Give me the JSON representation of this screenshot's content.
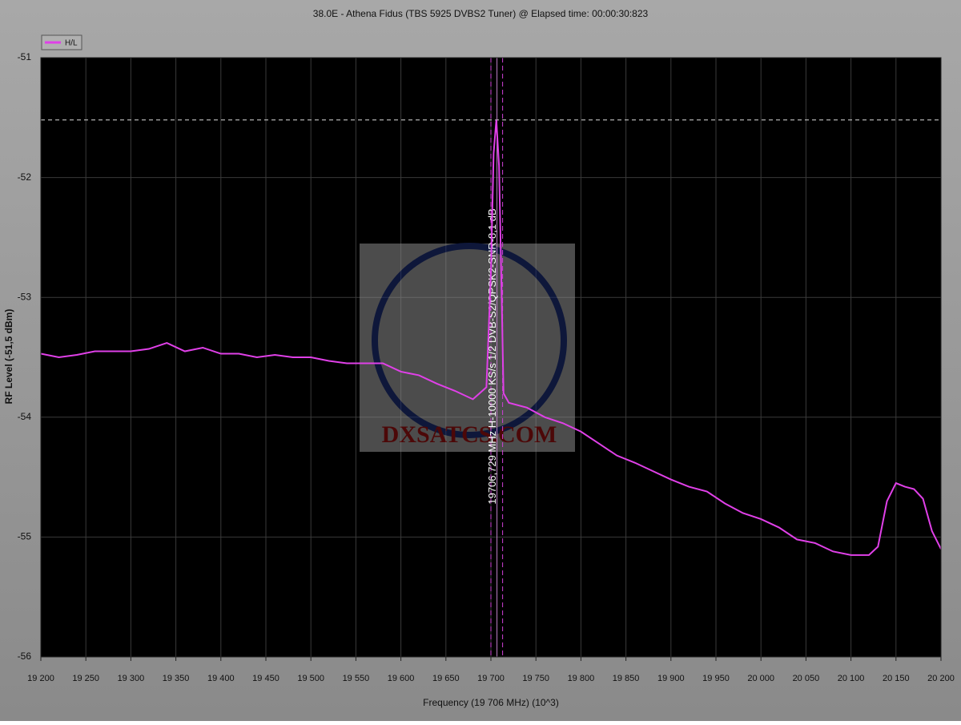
{
  "chart_data": {
    "type": "line",
    "title": "38.0E - Athena Fidus (TBS 5925 DVBS2 Tuner) @ Elapsed time: 00:00:30:823",
    "x_label": "Frequency  (19 706 MHz) (10^3)",
    "y_label": "RF Level (-51,5 dBm)",
    "annotation": "19706,729 MHz  H-10000 KS/s 1/2 DVB-S2/QPSK2-SNR-8,1 dB",
    "watermark": "DXSATCS.COM",
    "grid": true,
    "legend": "top-left",
    "xlim": [
      19200,
      20200
    ],
    "ylim": [
      -56,
      -51
    ],
    "yticks": [
      -56,
      -55,
      -54,
      -53,
      -52,
      -51
    ],
    "xticks": [
      {
        "value": 19200,
        "label": "19 200"
      },
      {
        "value": 19250,
        "label": "19 250"
      },
      {
        "value": 19300,
        "label": "19 300"
      },
      {
        "value": 19350,
        "label": "19 350"
      },
      {
        "value": 19400,
        "label": "19 400"
      },
      {
        "value": 19450,
        "label": "19 450"
      },
      {
        "value": 19500,
        "label": "19 500"
      },
      {
        "value": 19550,
        "label": "19 550"
      },
      {
        "value": 19600,
        "label": "19 600"
      },
      {
        "value": 19650,
        "label": "19 650"
      },
      {
        "value": 19700,
        "label": "19 700"
      },
      {
        "value": 19750,
        "label": "19 750"
      },
      {
        "value": 19800,
        "label": "19 800"
      },
      {
        "value": 19850,
        "label": "19 850"
      },
      {
        "value": 19900,
        "label": "19 900"
      },
      {
        "value": 19950,
        "label": "19 950"
      },
      {
        "value": 20000,
        "label": "20 000"
      },
      {
        "value": 20050,
        "label": "20 050"
      },
      {
        "value": 20100,
        "label": "20 100"
      },
      {
        "value": 20150,
        "label": "20 150"
      },
      {
        "value": 20200,
        "label": "20 200"
      }
    ],
    "markers": [
      19700,
      19706.729,
      19713
    ],
    "peak_level": -51.52,
    "x": [
      19200,
      19220,
      19240,
      19260,
      19280,
      19300,
      19320,
      19340,
      19360,
      19380,
      19400,
      19420,
      19440,
      19460,
      19480,
      19500,
      19520,
      19540,
      19560,
      19580,
      19600,
      19620,
      19640,
      19660,
      19680,
      19695,
      19700,
      19703,
      19706,
      19709,
      19712,
      19714,
      19720,
      19740,
      19760,
      19780,
      19800,
      19820,
      19840,
      19860,
      19880,
      19900,
      19920,
      19940,
      19960,
      19980,
      20000,
      20020,
      20040,
      20060,
      20080,
      20100,
      20120,
      20130,
      20140,
      20150,
      20160,
      20170,
      20180,
      20190,
      20200
    ],
    "series": [
      {
        "name": "H/L",
        "color": "#e040e8",
        "values": [
          -53.47,
          -53.5,
          -53.48,
          -53.45,
          -53.45,
          -53.45,
          -53.43,
          -53.38,
          -53.45,
          -53.42,
          -53.47,
          -53.47,
          -53.5,
          -53.48,
          -53.5,
          -53.5,
          -53.53,
          -53.55,
          -53.55,
          -53.55,
          -53.62,
          -53.65,
          -53.72,
          -53.78,
          -53.85,
          -53.75,
          -52.8,
          -51.8,
          -51.52,
          -51.9,
          -53.0,
          -53.8,
          -53.88,
          -53.92,
          -54.0,
          -54.05,
          -54.12,
          -54.22,
          -54.32,
          -54.38,
          -54.45,
          -54.52,
          -54.58,
          -54.62,
          -54.72,
          -54.8,
          -54.85,
          -54.92,
          -55.02,
          -55.05,
          -55.12,
          -55.15,
          -55.15,
          -55.08,
          -54.7,
          -54.55,
          -54.58,
          -54.6,
          -54.68,
          -54.95,
          -55.1
        ]
      }
    ]
  }
}
